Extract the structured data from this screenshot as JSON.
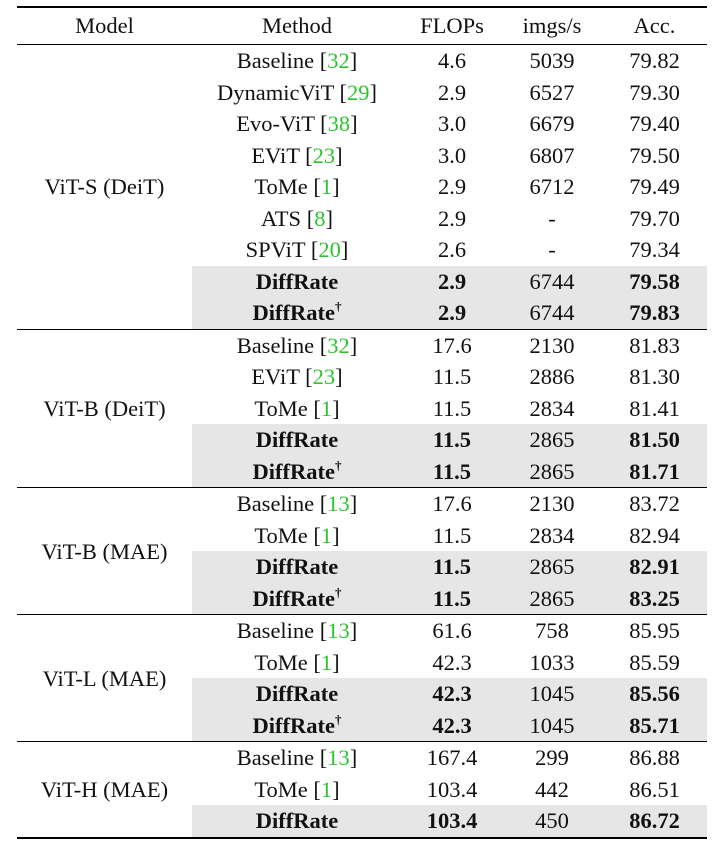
{
  "headers": [
    "Model",
    "Method",
    "FLOPs",
    "imgs/s",
    "Acc."
  ],
  "groups": [
    {
      "model": "ViT-S (DeiT)",
      "rows": [
        {
          "method": "Baseline",
          "ref": "32",
          "dagger": false,
          "flops": "4.6",
          "imgs": "5039",
          "acc": "79.82",
          "highlight": false
        },
        {
          "method": "DynamicViT",
          "ref": "29",
          "dagger": false,
          "flops": "2.9",
          "imgs": "6527",
          "acc": "79.30",
          "highlight": false
        },
        {
          "method": "Evo-ViT",
          "ref": "38",
          "dagger": false,
          "flops": "3.0",
          "imgs": "6679",
          "acc": "79.40",
          "highlight": false
        },
        {
          "method": "EViT",
          "ref": "23",
          "dagger": false,
          "flops": "3.0",
          "imgs": "6807",
          "acc": "79.50",
          "highlight": false
        },
        {
          "method": "ToMe",
          "ref": "1",
          "dagger": false,
          "flops": "2.9",
          "imgs": "6712",
          "acc": "79.49",
          "highlight": false
        },
        {
          "method": "ATS",
          "ref": "8",
          "dagger": false,
          "flops": "2.9",
          "imgs": "-",
          "acc": "79.70",
          "highlight": false
        },
        {
          "method": "SPViT",
          "ref": "20",
          "dagger": false,
          "flops": "2.6",
          "imgs": "-",
          "acc": "79.34",
          "highlight": false
        },
        {
          "method": "DiffRate",
          "ref": "",
          "dagger": false,
          "flops": "2.9",
          "imgs": "6744",
          "acc": "79.58",
          "highlight": true
        },
        {
          "method": "DiffRate",
          "ref": "",
          "dagger": true,
          "flops": "2.9",
          "imgs": "6744",
          "acc": "79.83",
          "highlight": true
        }
      ]
    },
    {
      "model": "ViT-B (DeiT)",
      "rows": [
        {
          "method": "Baseline",
          "ref": "32",
          "dagger": false,
          "flops": "17.6",
          "imgs": "2130",
          "acc": "81.83",
          "highlight": false
        },
        {
          "method": "EViT",
          "ref": "23",
          "dagger": false,
          "flops": "11.5",
          "imgs": "2886",
          "acc": "81.30",
          "highlight": false
        },
        {
          "method": "ToMe",
          "ref": "1",
          "dagger": false,
          "flops": "11.5",
          "imgs": "2834",
          "acc": "81.41",
          "highlight": false
        },
        {
          "method": "DiffRate",
          "ref": "",
          "dagger": false,
          "flops": "11.5",
          "imgs": "2865",
          "acc": "81.50",
          "highlight": true
        },
        {
          "method": "DiffRate",
          "ref": "",
          "dagger": true,
          "flops": "11.5",
          "imgs": "2865",
          "acc": "81.71",
          "highlight": true
        }
      ]
    },
    {
      "model": "ViT-B (MAE)",
      "rows": [
        {
          "method": "Baseline",
          "ref": "13",
          "dagger": false,
          "flops": "17.6",
          "imgs": "2130",
          "acc": "83.72",
          "highlight": false
        },
        {
          "method": "ToMe",
          "ref": "1",
          "dagger": false,
          "flops": "11.5",
          "imgs": "2834",
          "acc": "82.94",
          "highlight": false
        },
        {
          "method": "DiffRate",
          "ref": "",
          "dagger": false,
          "flops": "11.5",
          "imgs": "2865",
          "acc": "82.91",
          "highlight": true
        },
        {
          "method": "DiffRate",
          "ref": "",
          "dagger": true,
          "flops": "11.5",
          "imgs": "2865",
          "acc": "83.25",
          "highlight": true
        }
      ]
    },
    {
      "model": "ViT-L (MAE)",
      "rows": [
        {
          "method": "Baseline",
          "ref": "13",
          "dagger": false,
          "flops": "61.6",
          "imgs": "758",
          "acc": "85.95",
          "highlight": false
        },
        {
          "method": "ToMe",
          "ref": "1",
          "dagger": false,
          "flops": "42.3",
          "imgs": "1033",
          "acc": "85.59",
          "highlight": false
        },
        {
          "method": "DiffRate",
          "ref": "",
          "dagger": false,
          "flops": "42.3",
          "imgs": "1045",
          "acc": "85.56",
          "highlight": true
        },
        {
          "method": "DiffRate",
          "ref": "",
          "dagger": true,
          "flops": "42.3",
          "imgs": "1045",
          "acc": "85.71",
          "highlight": true
        }
      ]
    },
    {
      "model": "ViT-H (MAE)",
      "rows": [
        {
          "method": "Baseline",
          "ref": "13",
          "dagger": false,
          "flops": "167.4",
          "imgs": "299",
          "acc": "86.88",
          "highlight": false
        },
        {
          "method": "ToMe",
          "ref": "1",
          "dagger": false,
          "flops": "103.4",
          "imgs": "442",
          "acc": "86.51",
          "highlight": false
        },
        {
          "method": "DiffRate",
          "ref": "",
          "dagger": false,
          "flops": "103.4",
          "imgs": "450",
          "acc": "86.72",
          "highlight": true
        }
      ]
    }
  ],
  "dagger_symbol": "†",
  "colors": {
    "highlight_bg": "#e6e6e6",
    "ref_green": "#2fc42f",
    "text": "#111111"
  }
}
